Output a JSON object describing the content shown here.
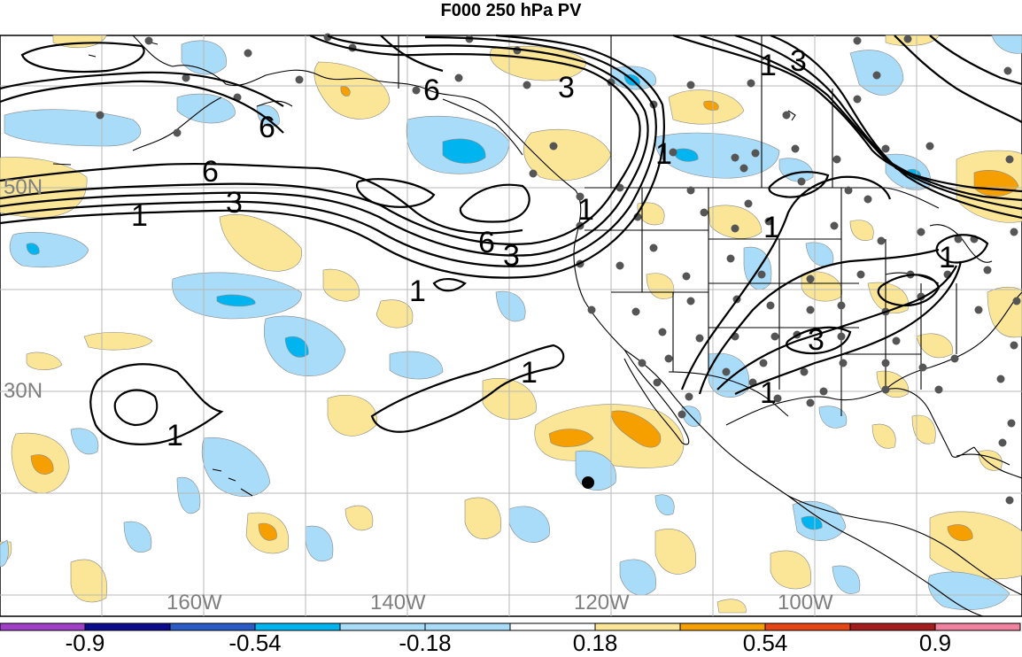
{
  "title": "F000 250 hPa PV",
  "lat_labels": [
    "50N",
    "30N"
  ],
  "lon_labels": [
    "160W",
    "140W",
    "120W",
    "100W"
  ],
  "colorbar": {
    "labels": [
      "-0.9",
      "-0.54",
      "-0.18",
      "0.18",
      "0.54",
      "0.9"
    ],
    "colors": [
      "#a040c8",
      "#0c0c8c",
      "#2a5cc8",
      "#00b4f0",
      "#a8dcf8",
      "#ffffff",
      "#ffffff",
      "#fae696",
      "#f5a000",
      "#e64614",
      "#a51e1e",
      "#f082a0"
    ]
  },
  "contour_labels": [
    "6",
    "6",
    "3",
    "1",
    "6",
    "6",
    "3",
    "1",
    "3",
    "1",
    "3",
    "1",
    "1",
    "1",
    "1",
    "3",
    "1",
    "1",
    "1"
  ],
  "fill_colors": {
    "light_blue": "#a8dcf8",
    "blue": "#00b4f0",
    "light_yellow": "#fae696",
    "orange": "#f5a000"
  }
}
